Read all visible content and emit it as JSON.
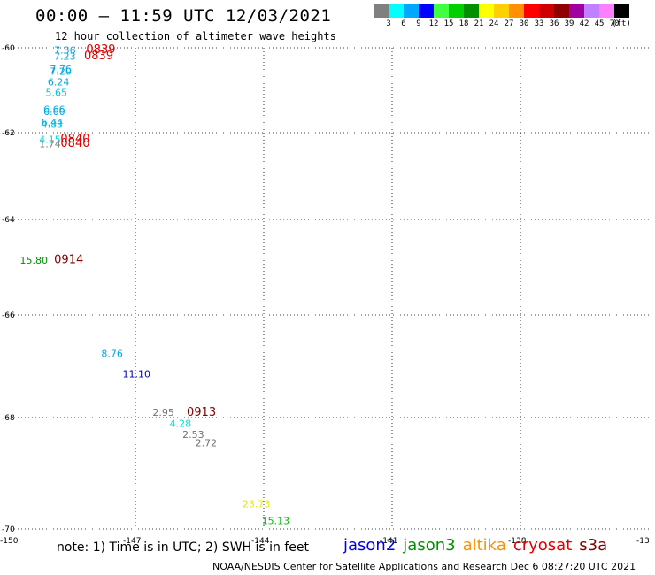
{
  "header": {
    "title": "00:00 – 11:59 UTC 12/03/2021",
    "subtitle": "12 hour collection of altimeter wave heights"
  },
  "colorbar": {
    "colors": [
      "#808080",
      "#00ffff",
      "#00a8ff",
      "#0000ff",
      "#40ff40",
      "#00d000",
      "#009000",
      "#ffff00",
      "#ffd000",
      "#ff9000",
      "#ff0000",
      "#d00000",
      "#900000",
      "#a000a0",
      "#c080ff",
      "#ff80ff",
      "#000000"
    ],
    "labels": [
      "3",
      "6",
      "9",
      "12",
      "15",
      "18",
      "21",
      "24",
      "27",
      "30",
      "33",
      "36",
      "39",
      "42",
      "45",
      "70",
      "(ft)"
    ]
  },
  "axes": {
    "lat_labels": [
      "-60",
      "-62",
      "-64",
      "-66",
      "-68",
      "-70"
    ],
    "lon_labels": [
      "-150",
      "-147",
      "-144",
      "-141",
      "-138",
      "-13"
    ]
  },
  "map_labels": [
    {
      "text": "7.36",
      "color": "#00a8e0",
      "lon": -148.9,
      "lat": -60.05
    },
    {
      "text": "7.23",
      "color": "#00a8e0",
      "lon": -148.9,
      "lat": -60.2
    },
    {
      "text": "7.76",
      "color": "#00a8e0",
      "lon": -149.0,
      "lat": -60.5
    },
    {
      "text": "7.20",
      "color": "#00a8e0",
      "lon": -149.0,
      "lat": -60.55
    },
    {
      "text": "6.24",
      "color": "#00a8e0",
      "lon": -149.05,
      "lat": -60.8
    },
    {
      "text": "5.65",
      "color": "#00c8e8",
      "lon": -149.1,
      "lat": -61.05
    },
    {
      "text": "6.66",
      "color": "#00a8e0",
      "lon": -149.15,
      "lat": -61.45
    },
    {
      "text": "6.60",
      "color": "#00a8e0",
      "lon": -149.15,
      "lat": -61.5
    },
    {
      "text": "6.44",
      "color": "#00a8e0",
      "lon": -149.2,
      "lat": -61.75
    },
    {
      "text": "4.83",
      "color": "#00c8e8",
      "lon": -149.2,
      "lat": -61.8
    },
    {
      "text": "4.15",
      "color": "#00e0e0",
      "lon": -149.25,
      "lat": -62.15
    },
    {
      "text": "1.74",
      "color": "#808080",
      "lon": -149.25,
      "lat": -62.25
    },
    {
      "text": "15.80",
      "color": "#009000",
      "lon": -149.7,
      "lat": -64.85
    },
    {
      "text": "8.76",
      "color": "#00a8e0",
      "lon": -147.8,
      "lat": -66.75
    },
    {
      "text": "11.10",
      "color": "#0000c0",
      "lon": -147.3,
      "lat": -67.15
    },
    {
      "text": "2.95",
      "color": "#707070",
      "lon": -146.6,
      "lat": -67.9
    },
    {
      "text": "4.28",
      "color": "#00e0e0",
      "lon": -146.2,
      "lat": -68.1
    },
    {
      "text": "2.53",
      "color": "#707070",
      "lon": -145.9,
      "lat": -68.3
    },
    {
      "text": "2.72",
      "color": "#707070",
      "lon": -145.6,
      "lat": -68.45
    },
    {
      "text": "23.73",
      "color": "#e8e800",
      "lon": -144.5,
      "lat": -69.55
    },
    {
      "text": "15.13",
      "color": "#00c000",
      "lon": -144.05,
      "lat": -69.85
    }
  ],
  "time_labels": [
    {
      "text": "0839",
      "color": "#e00000",
      "lon": -148.15,
      "lat": -60.02
    },
    {
      "text": "0839",
      "color": "#e00000",
      "lon": -148.2,
      "lat": -60.17
    },
    {
      "text": "0840",
      "color": "#e00000",
      "lon": -148.75,
      "lat": -62.12
    },
    {
      "text": "0840",
      "color": "#e00000",
      "lon": -148.75,
      "lat": -62.22
    },
    {
      "text": "0914",
      "color": "#800000",
      "lon": -148.9,
      "lat": -64.82
    },
    {
      "text": "0913",
      "color": "#800000",
      "lon": -145.8,
      "lat": -67.88
    }
  ],
  "note": "note: 1) Time is in UTC; 2) SWH is in feet",
  "legend": [
    {
      "label": "jason2",
      "color": "#0000e0"
    },
    {
      "label": "jason3",
      "color": "#009000"
    },
    {
      "label": "altika",
      "color": "#ff9000"
    },
    {
      "label": "cryosat",
      "color": "#e00000"
    },
    {
      "label": "s3a",
      "color": "#800000"
    }
  ],
  "footer": "NOAA/NESDIS Center for Satellite Applications and Research    Dec  6 08:27:20 UTC 2021"
}
